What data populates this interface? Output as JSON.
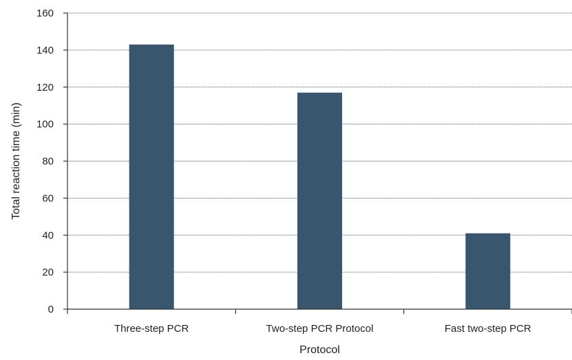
{
  "chart_data": {
    "type": "bar",
    "title": "",
    "xlabel": "Protocol",
    "ylabel": "Total reaction time (min)",
    "categories": [
      "Three-step PCR",
      "Two-step PCR Protocol",
      "Fast two-step PCR"
    ],
    "values": [
      143,
      117,
      41
    ],
    "ylim": [
      0,
      160
    ],
    "yticks": [
      0,
      20,
      40,
      60,
      80,
      100,
      120,
      140,
      160
    ],
    "grid": true,
    "legend": "none",
    "bar_color": "#3a566f"
  }
}
